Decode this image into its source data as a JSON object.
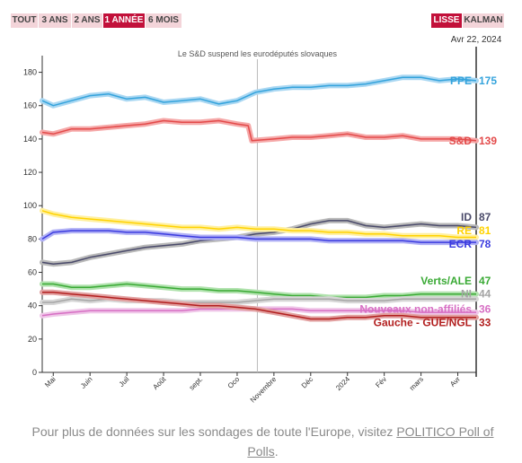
{
  "range_buttons": [
    {
      "label": "TOUT",
      "active": false
    },
    {
      "label": "3 ANS",
      "active": false
    },
    {
      "label": "2 ANS",
      "active": false
    },
    {
      "label": "1 ANNÉE",
      "active": true
    },
    {
      "label": "6 MOIS",
      "active": false
    }
  ],
  "smooth_buttons": [
    {
      "label": "LISSE",
      "active": true
    },
    {
      "label": "KALMAN",
      "active": false
    }
  ],
  "footer": {
    "text": "Pour plus de données sur les sondages de toute l'Europe, visitez ",
    "link": "POLITICO Poll of Polls",
    "end": "."
  },
  "chart_data": {
    "type": "line",
    "date_label": "Avr 22, 2024",
    "annotation": {
      "text": "Le S&D suspend les eurodéputés slovaques",
      "x": 5.55
    },
    "ylim": [
      0,
      190
    ],
    "xlim": [
      -0.3,
      11.5
    ],
    "yticks": [
      0,
      20,
      40,
      60,
      80,
      100,
      120,
      140,
      160,
      180
    ],
    "xticks": [
      {
        "label": "Mai",
        "x": 0
      },
      {
        "label": "Juin",
        "x": 1
      },
      {
        "label": "Juil",
        "x": 2
      },
      {
        "label": "Août",
        "x": 3
      },
      {
        "label": "sept.",
        "x": 4
      },
      {
        "label": "Oco",
        "x": 5
      },
      {
        "label": "Novembre",
        "x": 6
      },
      {
        "label": "Déc",
        "x": 7
      },
      {
        "label": "2024",
        "x": 8
      },
      {
        "label": "Fév",
        "x": 9
      },
      {
        "label": "mars",
        "x": 10
      },
      {
        "label": "Avr",
        "x": 11
      }
    ],
    "series": [
      {
        "name": "PPE",
        "value": 175,
        "color": "#34a3dc",
        "band": "#a9d7f2",
        "x": [
          -0.3,
          0,
          0.5,
          1,
          1.5,
          2,
          2.5,
          3,
          3.5,
          4,
          4.5,
          5,
          5.5,
          6,
          6.5,
          7,
          7.5,
          8,
          8.5,
          9,
          9.5,
          10,
          10.5,
          11,
          11.5
        ],
        "y": [
          163,
          160,
          163,
          166,
          167,
          164,
          165,
          162,
          163,
          164,
          161,
          163,
          168,
          170,
          171,
          171,
          172,
          172,
          173,
          175,
          177,
          177,
          175,
          176,
          175
        ]
      },
      {
        "name": "S&D",
        "value": 139,
        "color": "#e34a4a",
        "band": "#f5a8a8",
        "x": [
          -0.3,
          0,
          0.5,
          1,
          1.5,
          2,
          2.5,
          3,
          3.5,
          4,
          4.5,
          5,
          5.3,
          5.4,
          6,
          6.5,
          7,
          7.5,
          8,
          8.5,
          9,
          9.5,
          10,
          10.5,
          11,
          11.5
        ],
        "y": [
          144,
          143,
          146,
          146,
          147,
          148,
          149,
          151,
          150,
          150,
          151,
          149,
          148,
          139,
          140,
          141,
          141,
          142,
          143,
          141,
          141,
          142,
          140,
          140,
          140,
          139
        ]
      },
      {
        "name": "ID",
        "value": 87,
        "color": "#4a4a6a",
        "band": "#b9b9b9",
        "x": [
          -0.3,
          0,
          0.5,
          1,
          1.5,
          2,
          2.5,
          3,
          3.5,
          4,
          4.5,
          5,
          5.5,
          6,
          6.5,
          7,
          7.5,
          8,
          8.5,
          9,
          9.5,
          10,
          10.5,
          11,
          11.5
        ],
        "y": [
          66,
          65,
          66,
          69,
          71,
          73,
          75,
          76,
          77,
          79,
          80,
          81,
          83,
          84,
          86,
          89,
          91,
          91,
          88,
          87,
          88,
          89,
          88,
          88,
          87
        ]
      },
      {
        "name": "RE",
        "value": 81,
        "color": "#ffd200",
        "band": "#fff0a0",
        "x": [
          -0.3,
          0,
          0.5,
          1,
          1.5,
          2,
          2.5,
          3,
          3.5,
          4,
          4.5,
          5,
          5.5,
          6,
          6.5,
          7,
          7.5,
          8,
          8.5,
          9,
          9.5,
          10,
          10.5,
          11,
          11.5
        ],
        "y": [
          97,
          95,
          93,
          92,
          91,
          90,
          89,
          88,
          87,
          87,
          86,
          87,
          86,
          86,
          85,
          85,
          84,
          84,
          83,
          83,
          82,
          82,
          82,
          81,
          81
        ]
      },
      {
        "name": "ECR",
        "value": 78,
        "color": "#3b3bdf",
        "band": "#b0b0f5",
        "x": [
          -0.3,
          0,
          0.5,
          1,
          1.5,
          2,
          2.5,
          3,
          3.5,
          4,
          4.5,
          5,
          5.5,
          6,
          6.5,
          7,
          7.5,
          8,
          8.5,
          9,
          9.5,
          10,
          10.5,
          11,
          11.5
        ],
        "y": [
          80,
          84,
          85,
          85,
          85,
          84,
          84,
          83,
          82,
          81,
          81,
          81,
          80,
          80,
          80,
          80,
          79,
          79,
          79,
          79,
          79,
          78,
          78,
          78,
          78
        ]
      },
      {
        "name": "Verts/ALE",
        "value": 47,
        "color": "#3aaa35",
        "band": "#b0e2ad",
        "x": [
          -0.3,
          0,
          0.5,
          1,
          1.5,
          2,
          2.5,
          3,
          3.5,
          4,
          4.5,
          5,
          5.5,
          6,
          6.5,
          7,
          7.5,
          8,
          8.5,
          9,
          9.5,
          10,
          10.5,
          11,
          11.5
        ],
        "y": [
          53,
          53,
          51,
          51,
          52,
          53,
          52,
          51,
          50,
          50,
          49,
          49,
          48,
          47,
          46,
          46,
          45,
          45,
          45,
          46,
          46,
          47,
          47,
          47,
          47
        ]
      },
      {
        "name": "NI",
        "value": 44,
        "color": "#a5a5a5",
        "band": "#d6d6d6",
        "x": [
          -0.3,
          0,
          0.5,
          1,
          1.5,
          2,
          2.5,
          3,
          3.5,
          4,
          4.5,
          5,
          5.5,
          6,
          6.5,
          7,
          7.5,
          8,
          8.5,
          9,
          9.5,
          10,
          10.5,
          11,
          11.5
        ],
        "y": [
          42,
          42,
          44,
          43,
          44,
          43,
          43,
          43,
          42,
          42,
          42,
          42,
          43,
          44,
          44,
          44,
          44,
          43,
          43,
          43,
          44,
          44,
          44,
          44,
          44
        ]
      },
      {
        "name": "Nouveaux non-affiliés",
        "value": 36,
        "color": "#d76fc4",
        "band": "#efc6e8",
        "x": [
          -0.3,
          0,
          0.5,
          1,
          1.5,
          2,
          2.5,
          3,
          3.5,
          4,
          4.5,
          5,
          5.5,
          6,
          6.5,
          7,
          7.5,
          8,
          8.5,
          9,
          9.5,
          10,
          10.5,
          11,
          11.5
        ],
        "y": [
          34,
          35,
          36,
          37,
          37,
          37,
          37,
          37,
          37,
          38,
          38,
          38,
          38,
          38,
          38,
          37,
          37,
          37,
          37,
          37,
          37,
          36,
          36,
          36,
          36
        ]
      },
      {
        "name": "Gauche - GUE/NGL",
        "value": 33,
        "color": "#b21f1f",
        "band": "#e2a0a0",
        "x": [
          -0.3,
          0,
          0.5,
          1,
          1.5,
          2,
          2.5,
          3,
          3.5,
          4,
          4.5,
          5,
          5.5,
          6,
          6.5,
          7,
          7.5,
          8,
          8.5,
          9,
          9.5,
          10,
          10.5,
          11,
          11.5
        ],
        "y": [
          48,
          48,
          47,
          46,
          45,
          44,
          43,
          42,
          41,
          40,
          40,
          39,
          38,
          36,
          34,
          32,
          32,
          33,
          33,
          34,
          34,
          33,
          33,
          33,
          33
        ]
      }
    ]
  }
}
